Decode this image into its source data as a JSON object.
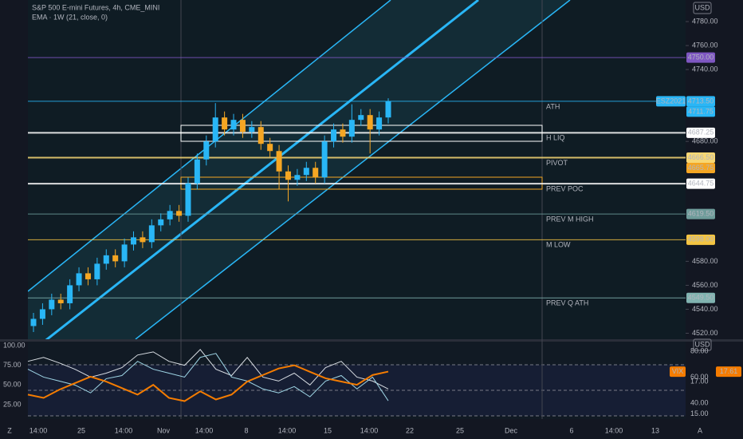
{
  "chart_data": {
    "type": "candlestick",
    "title": "S&P 500 E-mini Futures, 4h, CME_MINI",
    "subtitle": "EMA · 1W (21, close, 0)",
    "currency": "USD",
    "symbol_label": "ESZ2021",
    "x_labels": [
      "14:00",
      "25",
      "14:00",
      "Nov",
      "14:00",
      "8",
      "14:00",
      "15",
      "14:00",
      "22",
      "25",
      "Dec",
      "6",
      "14:00",
      "13"
    ],
    "ylim": [
      4515,
      4798
    ],
    "yticks": [
      {
        "value": 4780,
        "label": "4780.00"
      },
      {
        "value": 4760,
        "label": "4760.00"
      },
      {
        "value": 4740,
        "label": "4740.00"
      },
      {
        "value": 4680,
        "label": "4680.00"
      },
      {
        "value": 4580,
        "label": "4580.00"
      },
      {
        "value": 4560,
        "label": "4560.00"
      },
      {
        "value": 4540,
        "label": "4540.00"
      },
      {
        "value": 4520,
        "label": "4520.00"
      }
    ],
    "up_color": "#29b6f6",
    "down_color": "#f5a623",
    "open": [
      4526,
      4532,
      4540,
      4548,
      4545,
      4560,
      4570,
      4565,
      4578,
      4585,
      4580,
      4594,
      4600,
      4596,
      4610,
      4615,
      4622,
      4618,
      4645,
      4665,
      4680,
      4700,
      4690,
      4698,
      4688,
      4692,
      4678,
      4672,
      4655,
      4648,
      4652,
      4658,
      4650,
      4680,
      4690,
      4684,
      4698,
      4702,
      4690,
      4700
    ],
    "high": [
      4537,
      4545,
      4553,
      4553,
      4565,
      4575,
      4575,
      4583,
      4590,
      4590,
      4599,
      4605,
      4605,
      4615,
      4620,
      4627,
      4627,
      4650,
      4670,
      4685,
      4712,
      4705,
      4703,
      4703,
      4697,
      4697,
      4683,
      4677,
      4660,
      4657,
      4663,
      4663,
      4685,
      4695,
      4695,
      4711,
      4707,
      4707,
      4705,
      4716
    ],
    "low": [
      4521,
      4527,
      4535,
      4540,
      4540,
      4555,
      4560,
      4560,
      4573,
      4575,
      4575,
      4589,
      4591,
      4591,
      4605,
      4610,
      4613,
      4613,
      4640,
      4660,
      4675,
      4685,
      4685,
      4683,
      4683,
      4673,
      4667,
      4640,
      4630,
      4643,
      4647,
      4645,
      4645,
      4675,
      4679,
      4679,
      4693,
      4670,
      4685,
      4695
    ],
    "close": [
      4532,
      4540,
      4548,
      4545,
      4560,
      4570,
      4565,
      4578,
      4585,
      4580,
      4594,
      4600,
      4596,
      4610,
      4615,
      4622,
      4618,
      4645,
      4665,
      4680,
      4700,
      4690,
      4698,
      4688,
      4692,
      4678,
      4672,
      4655,
      4648,
      4652,
      4658,
      4650,
      4680,
      4690,
      4684,
      4698,
      4702,
      4690,
      4700,
      4713.5
    ],
    "levels": [
      {
        "value": 4750,
        "label": "4750.00",
        "color": "#7e57c2",
        "text_color": "#ffffff",
        "line": true
      },
      {
        "name": "ATH",
        "value": 4713.5,
        "label": "4713.50",
        "color": "#29b6f6",
        "text_color": "#0b1a22",
        "line": true
      },
      {
        "value": 4711.75,
        "label": "4711.75",
        "color": "#29b6f6",
        "text_color": "#0b1a22",
        "line": false
      },
      {
        "name": "H LIQ",
        "value": 4687.25,
        "label": "4687.25",
        "color": "#ffffff",
        "text_color": "#000000",
        "line": true
      },
      {
        "name": "PIVOT",
        "value": 4666.5,
        "label": "4666.50",
        "color": "#f7d774",
        "text_color": "#000000",
        "line": true
      },
      {
        "value": 4665.75,
        "label": "4665.75",
        "color": "#f5a623",
        "text_color": "#000000",
        "line": false
      },
      {
        "name": "PREV POC",
        "value": 4644.75,
        "label": "4644.75",
        "color": "#ffffff",
        "text_color": "#000000",
        "line": true
      },
      {
        "name": "PREV M HIGH",
        "value": 4619.5,
        "label": "4619.50",
        "color": "#6e9c9a",
        "text_color": "#000000",
        "line": true
      },
      {
        "name": "M LOW",
        "value": 4598,
        "label": "4598.00",
        "color": "#f5c542",
        "text_color": "#000000",
        "line": true
      },
      {
        "name": "PREV Q ATH",
        "value": 4549.5,
        "label": "4549.50",
        "color": "#80b3b0",
        "text_color": "#000000",
        "line": true
      }
    ],
    "indicator": {
      "currency": "USD",
      "ylim": [
        6.8,
        105
      ],
      "yticks": [
        {
          "value": 100,
          "label": "100.00"
        },
        {
          "value": 75,
          "label": "75.00"
        },
        {
          "value": 50,
          "label": "50.00"
        },
        {
          "value": 25,
          "label": "25.00"
        }
      ],
      "y2lim": [
        14.7,
        19.45
      ],
      "y2ticks": [
        {
          "value": 17,
          "label": "17.00"
        },
        {
          "value": 15,
          "label": "15.00"
        }
      ],
      "y3lim": [
        27.7,
        87.4
      ],
      "y3ticks": [
        {
          "value": 80,
          "label": "80.00"
        },
        {
          "value": 60,
          "label": "60.00"
        },
        {
          "value": 40,
          "label": "40.00"
        }
      ],
      "series": [
        {
          "color": "#d8dde3",
          "values": [
            80,
            85,
            78,
            70,
            60,
            65,
            72,
            88,
            92,
            80,
            75,
            95,
            70,
            62,
            85,
            60,
            55,
            65,
            50,
            72,
            80,
            60,
            55,
            45
          ]
        },
        {
          "color": "#9fd6e6",
          "values": [
            70,
            60,
            55,
            50,
            40,
            58,
            62,
            80,
            70,
            65,
            60,
            85,
            90,
            60,
            55,
            45,
            40,
            48,
            35,
            55,
            62,
            45,
            60,
            30
          ]
        },
        {
          "name": "VIX",
          "color": "#f57c00",
          "axis": "y2",
          "values": [
            16.2,
            16.0,
            16.5,
            16.9,
            17.3,
            17.0,
            16.6,
            16.2,
            16.8,
            16.0,
            15.8,
            16.4,
            15.9,
            16.2,
            17.0,
            17.4,
            17.8,
            18.0,
            17.6,
            17.2,
            17.0,
            16.8,
            17.4,
            17.61
          ]
        }
      ]
    }
  }
}
